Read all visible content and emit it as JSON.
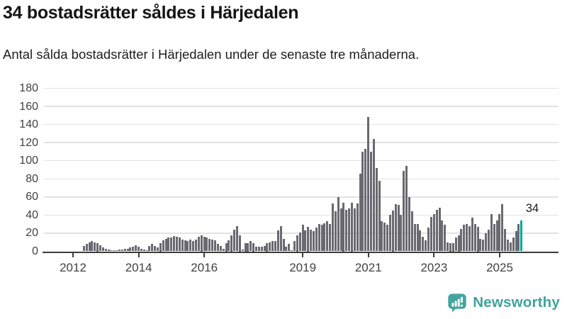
{
  "header": {
    "title": "34 bostadsrätter såldes i Härjedalen",
    "subtitle": "Antal sålda bostadsrätter i Härjedalen under de senaste tre månaderna."
  },
  "annotation": {
    "last_value_label": "34"
  },
  "branding": {
    "label": "Newsworthy",
    "icon": "bar-chart-speech-bubble-icon",
    "color": "#44a59f"
  },
  "chart_data": {
    "type": "bar",
    "title": "34 bostadsrätter såldes i Härjedalen",
    "subtitle": "Antal sålda bostadsrätter i Härjedalen under de senaste tre månaderna.",
    "x_start": "2012-01",
    "x_end": "2025-09",
    "frequency": "monthly",
    "unit": "sålda bostadsrätter (rullande tre månader)",
    "ylim": [
      0,
      180
    ],
    "y_ticks": [
      0,
      20,
      40,
      60,
      80,
      100,
      120,
      140,
      160,
      180
    ],
    "x_tick_labels": [
      "2012",
      "2014",
      "2016",
      "2019",
      "2021",
      "2023",
      "2025"
    ],
    "grid": "horizontal",
    "legend": "none",
    "bar_color": "#6a6970",
    "highlight_color": "#00a79b",
    "highlight_index": 164,
    "highlight_value": 34,
    "values": [
      0,
      0,
      0,
      0,
      6,
      8,
      10,
      11,
      10,
      9,
      7,
      4,
      3,
      2,
      1,
      1,
      1,
      2,
      2,
      3,
      3,
      4,
      5,
      7,
      5,
      3,
      2,
      1,
      6,
      8,
      6,
      4,
      9,
      12,
      14,
      15,
      15,
      17,
      16,
      15,
      13,
      12,
      11,
      13,
      11,
      13,
      16,
      18,
      16,
      15,
      14,
      13,
      12,
      8,
      6,
      3,
      9,
      12,
      18,
      24,
      28,
      18,
      2,
      9,
      9,
      11,
      9,
      5,
      5,
      5,
      6,
      9,
      10,
      11,
      11,
      23,
      28,
      14,
      5,
      8,
      1,
      11,
      18,
      21,
      29,
      23,
      27,
      24,
      22,
      26,
      30,
      29,
      31,
      33,
      30,
      53,
      44,
      60,
      47,
      54,
      46,
      47,
      54,
      47,
      53,
      86,
      110,
      113,
      148,
      110,
      124,
      92,
      78,
      33,
      32,
      29,
      40,
      45,
      52,
      51,
      40,
      89,
      94,
      60,
      44,
      30,
      30,
      23,
      16,
      12,
      26,
      38,
      41,
      46,
      48,
      34,
      29,
      10,
      9,
      9,
      15,
      18,
      25,
      29,
      30,
      28,
      37,
      30,
      27,
      14,
      13,
      20,
      24,
      41,
      30,
      34,
      41,
      52,
      25,
      13,
      10,
      15,
      22,
      30,
      34
    ]
  }
}
